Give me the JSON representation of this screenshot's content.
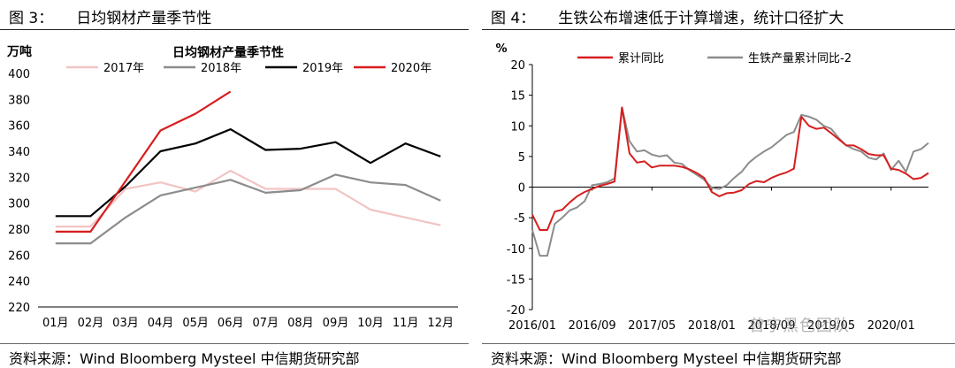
{
  "charts": [
    {
      "figure_label": "图 3：",
      "figure_title": "日均钢材产量季节性",
      "source": "资料来源：Wind Bloomberg Mysteel 中信期货研究部",
      "chart_data": {
        "type": "line",
        "title": "日均钢材产量季节性",
        "ylabel": "万吨",
        "ylim": [
          220,
          400
        ],
        "yticks": [
          220,
          240,
          260,
          280,
          300,
          320,
          340,
          360,
          380,
          400
        ],
        "categories": [
          "01月",
          "02月",
          "03月",
          "04月",
          "05月",
          "06月",
          "07月",
          "08月",
          "09月",
          "10月",
          "11月",
          "12月"
        ],
        "grid": false,
        "legend_position": "top",
        "series": [
          {
            "name": "2017年",
            "color": "#f2c4c4",
            "values": [
              282,
              282,
              311,
              316,
              309,
              325,
              311,
              311,
              311,
              295,
              289,
              283
            ]
          },
          {
            "name": "2018年",
            "color": "#8c8c8c",
            "values": [
              269,
              269,
              289,
              306,
              312,
              318,
              308,
              310,
              322,
              316,
              314,
              302
            ]
          },
          {
            "name": "2019年",
            "color": "#000000",
            "values": [
              290,
              290,
              313,
              340,
              346,
              357,
              341,
              342,
              347,
              331,
              346,
              336
            ]
          },
          {
            "name": "2020年",
            "color": "#d71e1e",
            "values": [
              278,
              278,
              317,
              356,
              369,
              386,
              null,
              null,
              null,
              null,
              null,
              null
            ]
          }
        ]
      }
    },
    {
      "figure_label": "图 4：",
      "figure_title": "生铁公布增速低于计算增速，统计口径扩大",
      "source": "资料来源：Wind Bloomberg Mysteel 中信期货研究部",
      "watermark": "曾宁黑色团队",
      "chart_data": {
        "type": "line",
        "ylabel": "%",
        "ylim": [
          -20,
          20
        ],
        "yticks": [
          -20,
          -15,
          -10,
          -5,
          0,
          5,
          10,
          15,
          20
        ],
        "x_tick_labels": [
          "2016/01",
          "2016/09",
          "2017/05",
          "2018/01",
          "2018/09",
          "2019/05",
          "2020/01"
        ],
        "x": [
          "2016/01",
          "2016/02",
          "2016/03",
          "2016/04",
          "2016/05",
          "2016/06",
          "2016/07",
          "2016/08",
          "2016/09",
          "2016/10",
          "2016/11",
          "2016/12",
          "2017/01",
          "2017/02",
          "2017/03",
          "2017/04",
          "2017/05",
          "2017/06",
          "2017/07",
          "2017/08",
          "2017/09",
          "2017/10",
          "2017/11",
          "2017/12",
          "2018/01",
          "2018/02",
          "2018/03",
          "2018/04",
          "2018/05",
          "2018/06",
          "2018/07",
          "2018/08",
          "2018/09",
          "2018/10",
          "2018/11",
          "2018/12",
          "2019/01",
          "2019/02",
          "2019/03",
          "2019/04",
          "2019/05",
          "2019/06",
          "2019/07",
          "2019/08",
          "2019/09",
          "2019/10",
          "2019/11",
          "2019/12",
          "2020/01",
          "2020/02",
          "2020/03",
          "2020/04",
          "2020/05",
          "2020/06"
        ],
        "grid": false,
        "legend_position": "top",
        "series": [
          {
            "name": "累计同比",
            "color": "#d71e1e",
            "values": [
              -4.5,
              -7,
              -7,
              -4,
              -3.7,
              -2.5,
              -1.5,
              -0.8,
              -0.3,
              0.2,
              0.5,
              0.9,
              13,
              5.5,
              4,
              4.2,
              3.2,
              3.5,
              3.5,
              3.5,
              3.3,
              2.9,
              2.3,
              1.5,
              -0.8,
              -1.5,
              -1,
              -0.9,
              -0.5,
              0.5,
              1,
              0.8,
              1.5,
              2,
              2.4,
              3,
              11.5,
              10,
              9.5,
              9.7,
              8.8,
              7.8,
              6.8,
              6.8,
              6.2,
              5.4,
              5.2,
              5.2,
              3,
              2.8,
              2.2,
              1.3,
              1.5,
              2.3
            ]
          },
          {
            "name": "生铁产量累计同比-2",
            "color": "#8c8c8c",
            "values": [
              -7,
              -11.2,
              -11.2,
              -6,
              -5,
              -3.8,
              -3.3,
              -2.3,
              0.3,
              0.5,
              0.8,
              1.4,
              13,
              7.5,
              5.8,
              6,
              5.3,
              5,
              5.2,
              4,
              3.8,
              2.8,
              2,
              1.2,
              -0.1,
              -0.3,
              0.3,
              1.5,
              2.5,
              4,
              5,
              5.8,
              6.5,
              7.5,
              8.5,
              9,
              11.8,
              11.5,
              11,
              10,
              9.5,
              8,
              6.8,
              6.2,
              5.8,
              4.8,
              4.5,
              5.5,
              2.8,
              4.3,
              2.5,
              5.8,
              6.2,
              7.2
            ]
          }
        ]
      }
    }
  ]
}
